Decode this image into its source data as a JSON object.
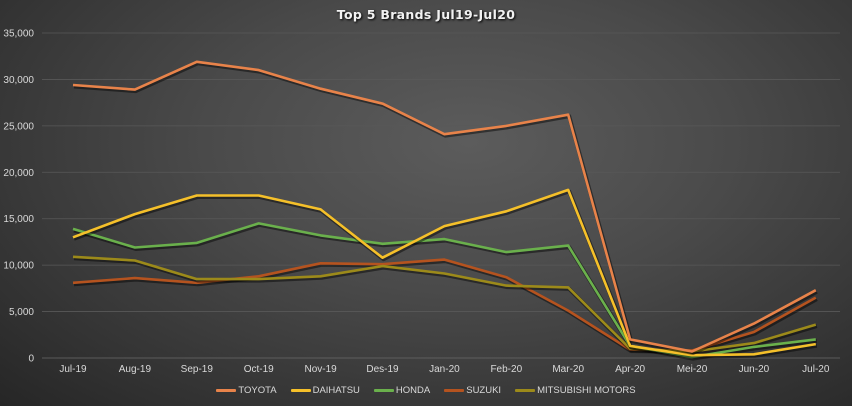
{
  "chart_data": {
    "type": "line",
    "title": "Top 5 Brands Jul19-Jul20",
    "xlabel": "",
    "ylabel": "",
    "ylim": [
      0,
      35000
    ],
    "yticks": [
      0,
      5000,
      10000,
      15000,
      20000,
      25000,
      30000,
      35000
    ],
    "ytick_labels": [
      "0",
      "5,000",
      "10,000",
      "15,000",
      "20,000",
      "25,000",
      "30,000",
      "35,000"
    ],
    "grid": true,
    "legend_position": "bottom",
    "categories": [
      "Jul-19",
      "Aug-19",
      "Sep-19",
      "Oct-19",
      "Nov-19",
      "Des-19",
      "Jan-20",
      "Feb-20",
      "Mar-20",
      "Apr-20",
      "Mei-20",
      "Jun-20",
      "Jul-20"
    ],
    "series": [
      {
        "name": "TOYOTA",
        "color": "#e8834a",
        "values": [
          29400,
          28900,
          31900,
          31000,
          29000,
          27400,
          24100,
          25000,
          26200,
          2000,
          700,
          3700,
          7300
        ]
      },
      {
        "name": "DAIHATSU",
        "color": "#f5c02a",
        "values": [
          13000,
          15500,
          17500,
          17500,
          16000,
          10800,
          14200,
          15800,
          18100,
          1300,
          300,
          400,
          1500
        ]
      },
      {
        "name": "HONDA",
        "color": "#6ab04c",
        "values": [
          13900,
          11900,
          12400,
          14500,
          13200,
          12300,
          12800,
          11400,
          12100,
          1300,
          100,
          1200,
          2000
        ]
      },
      {
        "name": "SUZUKI",
        "color": "#b5531f",
        "values": [
          8100,
          8600,
          8100,
          8800,
          10200,
          10100,
          10600,
          8700,
          5100,
          900,
          800,
          2800,
          6500
        ]
      },
      {
        "name": "MITSUBISHI MOTORS",
        "color": "#9c8a1a",
        "values": [
          10900,
          10500,
          8500,
          8500,
          8800,
          9900,
          9100,
          7800,
          7600,
          1000,
          700,
          1600,
          3600
        ]
      }
    ]
  }
}
